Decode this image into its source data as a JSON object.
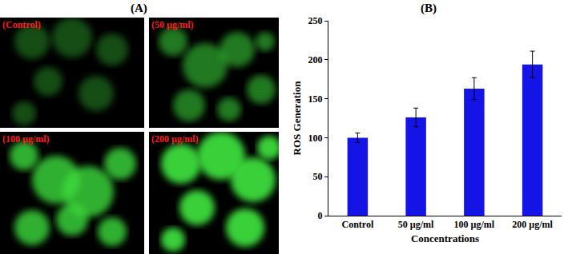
{
  "panel_labels": [
    "(A)",
    "(B)"
  ],
  "images": [
    "(Control)",
    "(50 µg/ml)",
    "(100 µg/ml)",
    "(200 µg/ml)"
  ],
  "chart_data": {
    "type": "bar",
    "x_label": "Concentrations",
    "y_label": "ROS Generation",
    "categories": [
      "Control",
      "50 µg/ml",
      "100 µg/ml",
      "200 µg/ml"
    ],
    "values": [
      100,
      126,
      163,
      194
    ],
    "errors": [
      6,
      12,
      14,
      17
    ],
    "color": "#1414e6",
    "ylim": [
      0,
      250
    ],
    "yticks": [
      0,
      50,
      100,
      150,
      200,
      250
    ],
    "grid": false
  }
}
